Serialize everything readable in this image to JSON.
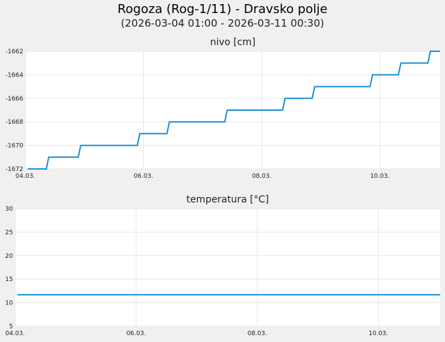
{
  "header": {
    "title": "Rogoza (Rog-1/11) - Dravsko polje",
    "subtitle": "(2026-03-04 01:00 - 2026-03-11 00:30)"
  },
  "chart_data": [
    {
      "type": "line",
      "title": "nivo [cm]",
      "xlabel": "",
      "ylabel": "",
      "x_range": [
        "2026-03-04 00:00",
        "2026-03-11 00:30"
      ],
      "ylim": [
        -1672,
        -1662
      ],
      "y_ticks": [
        -1672,
        -1670,
        -1668,
        -1666,
        -1664,
        -1662
      ],
      "x_ticks": [
        {
          "date": "2026-03-04",
          "label": "04.03."
        },
        {
          "date": "2026-03-06",
          "label": "06.03."
        },
        {
          "date": "2026-03-08",
          "label": "08.03."
        },
        {
          "date": "2026-03-10",
          "label": "10.03."
        }
      ],
      "grid": true,
      "color": "#1a8fd0",
      "series": [
        {
          "x": [
            "2026-03-04 01:00",
            "2026-03-04 08:30",
            "2026-03-04 09:30",
            "2026-03-04 21:30",
            "2026-03-04 22:30",
            "2026-03-05 09:30",
            "2026-03-05 10:30",
            "2026-03-05 21:30",
            "2026-03-05 22:30",
            "2026-03-06 09:30",
            "2026-03-06 10:30",
            "2026-03-06 21:00",
            "2026-03-06 22:00",
            "2026-03-07 09:00",
            "2026-03-07 10:00",
            "2026-03-07 20:30",
            "2026-03-07 21:30",
            "2026-03-08 08:30",
            "2026-03-08 09:30",
            "2026-03-08 20:30",
            "2026-03-08 21:30",
            "2026-03-09 08:00",
            "2026-03-09 09:00",
            "2026-03-09 20:00",
            "2026-03-09 21:00",
            "2026-03-10 07:30",
            "2026-03-10 08:30",
            "2026-03-10 19:30",
            "2026-03-10 20:30",
            "2026-03-11 00:30"
          ],
          "values": [
            -1672,
            -1672,
            -1671,
            -1671,
            -1670,
            -1670,
            -1670,
            -1670,
            -1669,
            -1669,
            -1668,
            -1668,
            -1668,
            -1668,
            -1667,
            -1667,
            -1667,
            -1667,
            -1666,
            -1666,
            -1665,
            -1665,
            -1665,
            -1665,
            -1664,
            -1664,
            -1663,
            -1663,
            -1662,
            -1662
          ]
        }
      ]
    },
    {
      "type": "line",
      "title": "temperatura [°C]",
      "xlabel": "",
      "ylabel": "",
      "x_range": [
        "2026-03-04 00:00",
        "2026-03-11 00:30"
      ],
      "ylim": [
        5,
        30
      ],
      "y_ticks": [
        5,
        10,
        15,
        20,
        25,
        30
      ],
      "x_ticks": [
        {
          "date": "2026-03-04",
          "label": "04.03."
        },
        {
          "date": "2026-03-06",
          "label": "06.03."
        },
        {
          "date": "2026-03-08",
          "label": "08.03."
        },
        {
          "date": "2026-03-10",
          "label": "10.03."
        }
      ],
      "grid": true,
      "color": "#1a8fd0",
      "series": [
        {
          "x": [
            "2026-03-04 01:00",
            "2026-03-11 00:30"
          ],
          "values": [
            11.7,
            11.7
          ]
        }
      ]
    }
  ]
}
